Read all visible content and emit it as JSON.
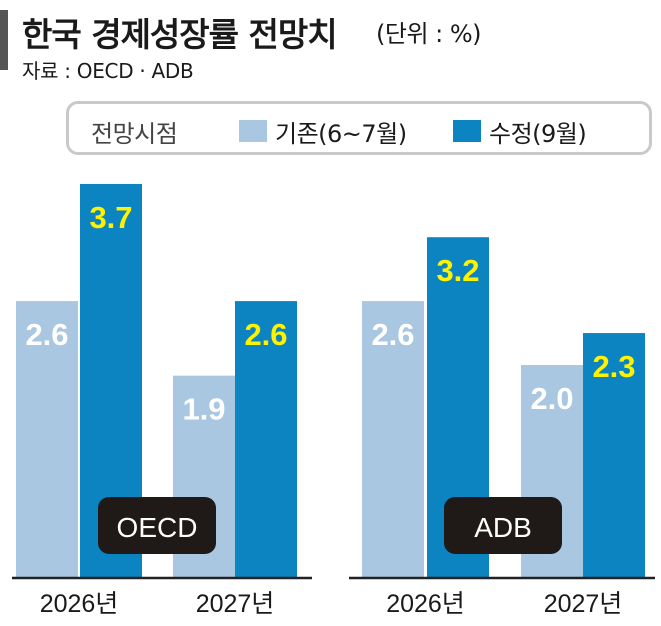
{
  "title": "한국 경제성장률 전망치",
  "unit": "(단위 : %)",
  "source": "자료 : OECD · ADB",
  "legend": {
    "title": "전망시점",
    "items": [
      {
        "label": "기존(6~7월)",
        "color": "#a9c7e0"
      },
      {
        "label": "수정(9월)",
        "color": "#0b84c1"
      }
    ]
  },
  "colors": {
    "previous": "#a9c7e0",
    "revised": "#0b84c1",
    "label_previous": "#ffffff",
    "label_revised": "#fff200",
    "badge": "#1f1a17",
    "axis": "#222222"
  },
  "chart_data": [
    {
      "type": "bar",
      "group_label": "OECD",
      "categories": [
        "2026년",
        "2027년"
      ],
      "series": [
        {
          "name": "기존(6~7월)",
          "values": [
            2.6,
            1.9
          ]
        },
        {
          "name": "수정(9월)",
          "values": [
            3.7,
            2.6
          ]
        }
      ],
      "value_labels": [
        [
          "2.6",
          "1.9"
        ],
        [
          "3.7",
          "2.6"
        ]
      ],
      "ylim": [
        0,
        4.3
      ]
    },
    {
      "type": "bar",
      "group_label": "ADB",
      "categories": [
        "2026년",
        "2027년"
      ],
      "series": [
        {
          "name": "기존(6~7월)",
          "values": [
            2.6,
            2.0
          ]
        },
        {
          "name": "수정(9월)",
          "values": [
            3.2,
            2.3
          ]
        }
      ],
      "value_labels": [
        [
          "2.6",
          "2.0"
        ],
        [
          "3.2",
          "2.3"
        ]
      ],
      "ylim": [
        0,
        4.3
      ]
    }
  ]
}
